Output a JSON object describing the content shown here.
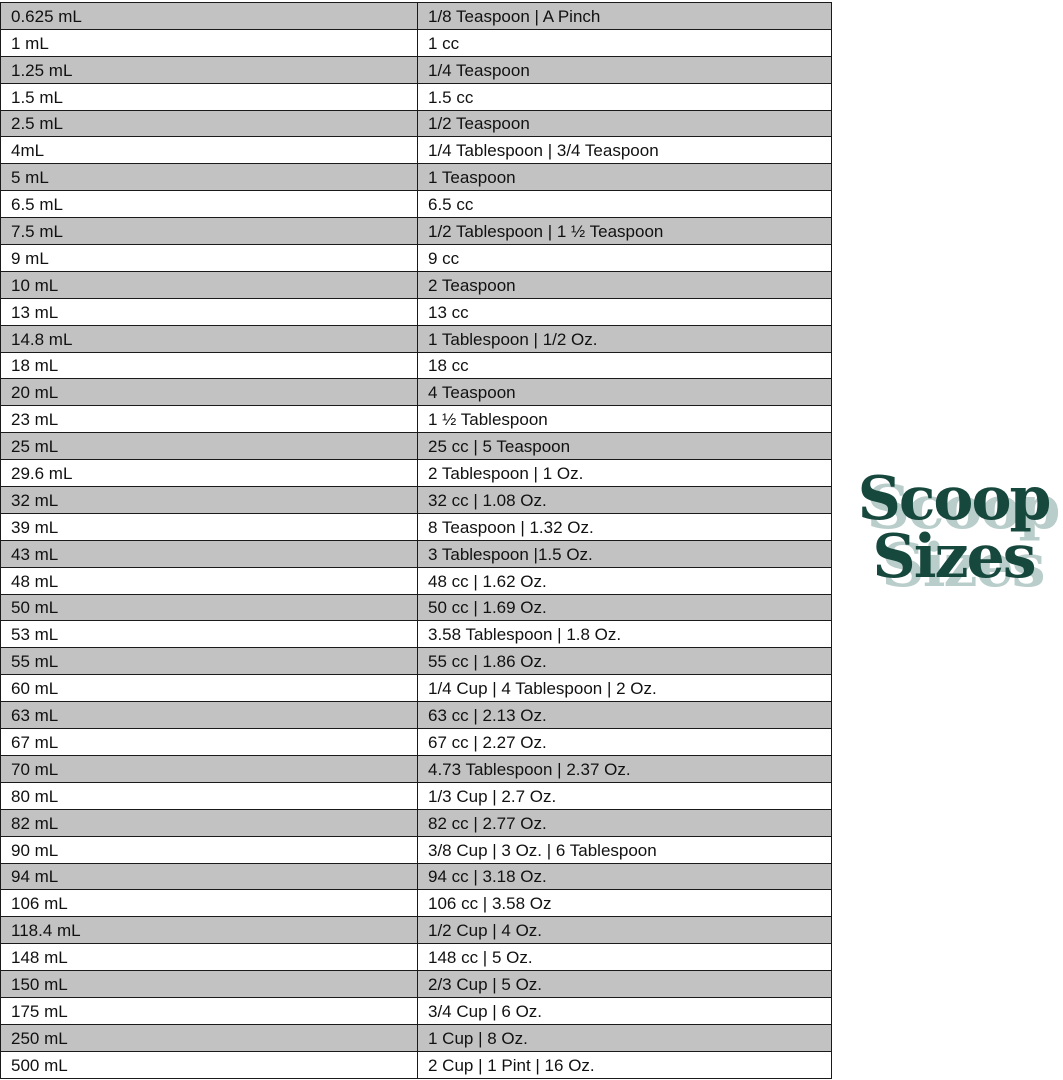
{
  "logo": {
    "line1": "Scoop",
    "line2": "Sizes",
    "color": "#17483d",
    "shadow_color": "#b9cdca"
  },
  "rows": [
    [
      "0.625 mL",
      "1/8 Teaspoon | A Pinch"
    ],
    [
      "1 mL",
      "1 cc"
    ],
    [
      "1.25 mL",
      "1/4 Teaspoon"
    ],
    [
      "1.5 mL",
      "1.5 cc"
    ],
    [
      "2.5 mL",
      "1/2 Teaspoon"
    ],
    [
      "4mL",
      "1/4 Tablespoon | 3/4 Teaspoon"
    ],
    [
      "5 mL",
      "1 Teaspoon"
    ],
    [
      "6.5 mL",
      "6.5 cc"
    ],
    [
      "7.5 mL",
      "1/2 Tablespoon | 1 ½ Teaspoon"
    ],
    [
      "9 mL",
      "9 cc"
    ],
    [
      "10 mL",
      "2 Teaspoon"
    ],
    [
      "13 mL",
      "13 cc"
    ],
    [
      "14.8 mL",
      "1 Tablespoon | 1/2 Oz."
    ],
    [
      "18 mL",
      "18 cc"
    ],
    [
      "20 mL",
      "4 Teaspoon"
    ],
    [
      "23 mL",
      "1 ½ Tablespoon"
    ],
    [
      "25 mL",
      "25 cc | 5 Teaspoon"
    ],
    [
      "29.6 mL",
      "2 Tablespoon | 1 Oz."
    ],
    [
      "32 mL",
      "32 cc | 1.08 Oz."
    ],
    [
      "39 mL",
      "8 Teaspoon | 1.32 Oz."
    ],
    [
      "43 mL",
      "3 Tablespoon |1.5 Oz."
    ],
    [
      "48 mL",
      "48 cc | 1.62 Oz."
    ],
    [
      "50 mL",
      "50 cc | 1.69 Oz."
    ],
    [
      "53 mL",
      "3.58 Tablespoon | 1.8 Oz."
    ],
    [
      "55 mL",
      "55 cc | 1.86 Oz."
    ],
    [
      "60 mL",
      "1/4 Cup | 4 Tablespoon | 2 Oz."
    ],
    [
      "63 mL",
      "63 cc | 2.13 Oz."
    ],
    [
      "67 mL",
      "67 cc | 2.27 Oz."
    ],
    [
      "70 mL",
      "4.73 Tablespoon | 2.37 Oz."
    ],
    [
      "80 mL",
      "1/3 Cup | 2.7 Oz."
    ],
    [
      "82 mL",
      "82 cc | 2.77 Oz."
    ],
    [
      "90 mL",
      "3/8 Cup | 3 Oz. | 6 Tablespoon"
    ],
    [
      "94 mL",
      "94 cc | 3.18 Oz."
    ],
    [
      "106 mL",
      "106 cc | 3.58 Oz"
    ],
    [
      "118.4 mL",
      "1/2 Cup | 4 Oz."
    ],
    [
      "148 mL",
      "148 cc | 5 Oz."
    ],
    [
      "150 mL",
      "2/3 Cup | 5 Oz."
    ],
    [
      "175 mL",
      "3/4 Cup | 6 Oz."
    ],
    [
      "250 mL",
      "1 Cup | 8 Oz."
    ],
    [
      "500 mL",
      "2 Cup | 1 Pint | 16 Oz."
    ]
  ]
}
